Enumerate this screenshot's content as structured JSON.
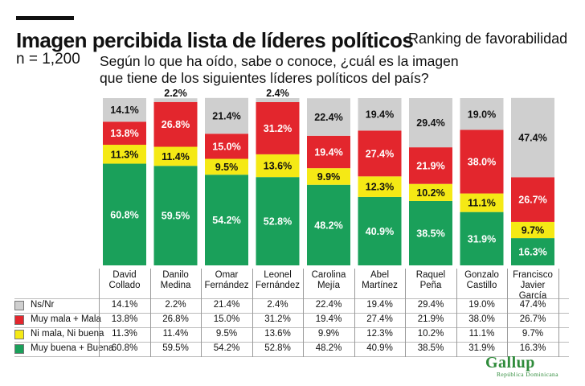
{
  "header": {
    "title": "Imagen percibida lista de líderes políticos",
    "ranking": "Ranking de favorabilidad",
    "sample": "n = 1,200",
    "question": "Según lo que ha oído, sabe o conoce, ¿cuál es la imagen que tiene de los siguientes líderes políticos del país?"
  },
  "chart_data": {
    "type": "bar",
    "stacked": true,
    "value_unit": "%",
    "categories": [
      [
        "David",
        "Collado"
      ],
      [
        "Danilo",
        "Medina"
      ],
      [
        "Omar",
        "Fernández"
      ],
      [
        "Leonel",
        "Fernández"
      ],
      [
        "Carolina",
        "Mejía"
      ],
      [
        "Abel",
        "Martínez"
      ],
      [
        "Raquel",
        "Peña"
      ],
      [
        "Gonzalo",
        "Castillo"
      ],
      [
        "Francisco",
        "Javier García"
      ]
    ],
    "series": [
      {
        "name": "Muy buena + Buena",
        "color": "#1aa05a",
        "label_color": "#ffffff",
        "values": [
          60.8,
          59.5,
          54.2,
          52.8,
          48.2,
          40.9,
          38.5,
          31.9,
          16.3
        ]
      },
      {
        "name": "Ni mala, Ni buena",
        "color": "#f5e915",
        "label_color": "#111111",
        "values": [
          11.3,
          11.4,
          9.5,
          13.6,
          9.9,
          12.3,
          10.2,
          11.1,
          9.7
        ]
      },
      {
        "name": "Muy mala + Mala",
        "color": "#e3262d",
        "label_color": "#ffffff",
        "values": [
          13.8,
          26.8,
          15.0,
          31.2,
          19.4,
          27.4,
          21.9,
          38.0,
          26.7
        ]
      },
      {
        "name": "Ns/Nr",
        "color": "#cfcfcf",
        "label_color": "#111111",
        "values": [
          14.1,
          2.2,
          21.4,
          2.4,
          22.4,
          19.4,
          29.4,
          19.0,
          47.4
        ]
      }
    ],
    "ylim": [
      0,
      100
    ]
  },
  "table": {
    "rows": [
      {
        "label": "Ns/Nr",
        "color": "#cfcfcf",
        "values": [
          "14.1%",
          "2.2%",
          "21.4%",
          "2.4%",
          "22.4%",
          "19.4%",
          "29.4%",
          "19.0%",
          "47.4%"
        ]
      },
      {
        "label": "Muy mala + Mala",
        "color": "#e3262d",
        "values": [
          "13.8%",
          "26.8%",
          "15.0%",
          "31.2%",
          "19.4%",
          "27.4%",
          "21.9%",
          "38.0%",
          "26.7%"
        ]
      },
      {
        "label": "Ni mala, Ni buena",
        "color": "#f5e915",
        "values": [
          "11.3%",
          "11.4%",
          "9.5%",
          "13.6%",
          "9.9%",
          "12.3%",
          "10.2%",
          "11.1%",
          "9.7%"
        ]
      },
      {
        "label": "Muy buena + Buena",
        "color": "#1aa05a",
        "values": [
          "60.8%",
          "59.5%",
          "54.2%",
          "52.8%",
          "48.2%",
          "40.9%",
          "38.5%",
          "31.9%",
          "16.3%"
        ]
      }
    ]
  },
  "logo": {
    "name": "Gallup",
    "subtitle": "República Dominicana"
  }
}
